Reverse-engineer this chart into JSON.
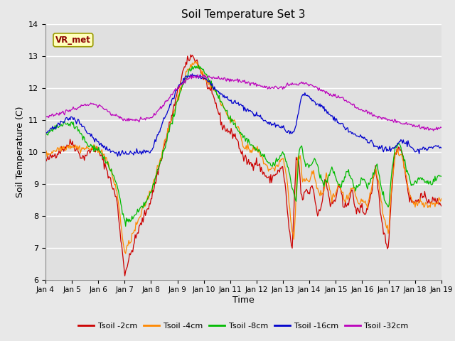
{
  "title": "Soil Temperature Set 3",
  "xlabel": "Time",
  "ylabel": "Soil Temperature (C)",
  "ylim": [
    6.0,
    14.0
  ],
  "yticks": [
    6.0,
    7.0,
    8.0,
    9.0,
    10.0,
    11.0,
    12.0,
    13.0,
    14.0
  ],
  "xtick_labels": [
    "Jan 4",
    "Jan 5",
    "Jan 6",
    "Jan 7",
    "Jan 8",
    "Jan 9",
    "Jan 10",
    "Jan 11",
    "Jan 12",
    "Jan 13",
    "Jan 14",
    "Jan 15",
    "Jan 16",
    "Jan 17",
    "Jan 18",
    "Jan 19"
  ],
  "legend_label": "VR_met",
  "series_labels": [
    "Tsoil -2cm",
    "Tsoil -4cm",
    "Tsoil -8cm",
    "Tsoil -16cm",
    "Tsoil -32cm"
  ],
  "series_colors": [
    "#cc0000",
    "#ff8800",
    "#00bb00",
    "#0000cc",
    "#bb00bb"
  ],
  "fig_bg_color": "#e8e8e8",
  "plot_bg_color": "#e0e0e0",
  "grid_color": "#ffffff",
  "n_points": 500
}
